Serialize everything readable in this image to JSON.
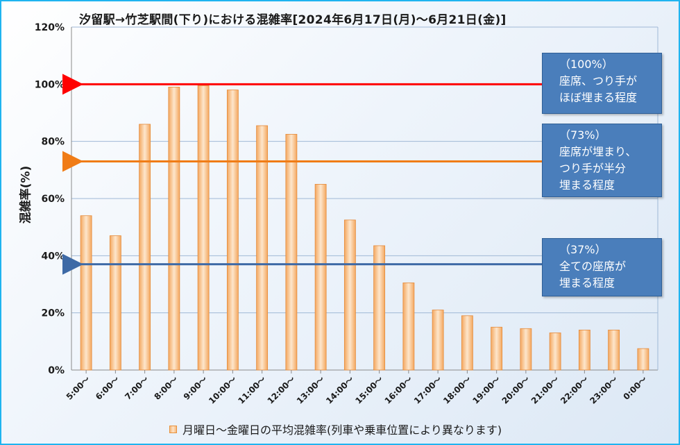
{
  "chart_data": {
    "type": "bar",
    "title": "汐留駅→竹芝駅間(下り)における混雑率[2024年6月17日(月)～6月21日(金)]",
    "ylabel": "混雑率(%)",
    "xlabel": "",
    "ylim": [
      0,
      120
    ],
    "yticks": [
      "0%",
      "20%",
      "40%",
      "60%",
      "80%",
      "100%",
      "120%"
    ],
    "grid": true,
    "legend_position": "bottom",
    "categories": [
      "5:00～",
      "6:00～",
      "7:00～",
      "8:00～",
      "9:00～",
      "10:00～",
      "11:00～",
      "12:00～",
      "13:00～",
      "14:00～",
      "15:00～",
      "16:00～",
      "17:00～",
      "18:00～",
      "19:00～",
      "20:00～",
      "21:00～",
      "22:00～",
      "23:00～",
      "0:00～"
    ],
    "series": [
      {
        "name": "月曜日～金曜日の平均混雑率(列車や乗車位置により異なります)",
        "values": [
          54,
          47,
          86,
          99,
          99.5,
          98,
          85.5,
          82.5,
          65,
          52.5,
          43.5,
          30.5,
          21,
          19,
          15,
          14.5,
          13,
          14,
          14,
          7.5
        ]
      }
    ],
    "reference_lines": [
      {
        "value": 100,
        "color": "#ff0000",
        "lines": [
          "（100%）",
          "座席、つり手が",
          "ほぼ埋まる程度"
        ]
      },
      {
        "value": 73,
        "color": "#f07c16",
        "lines": [
          "（73%）",
          "座席が埋まり、",
          "つり手が半分",
          "埋まる程度"
        ]
      },
      {
        "value": 37,
        "color": "#3e6aa6",
        "lines": [
          "（37%）",
          "全ての座席が",
          "埋まる程度"
        ]
      }
    ],
    "bar_color": "#f6b97e"
  }
}
